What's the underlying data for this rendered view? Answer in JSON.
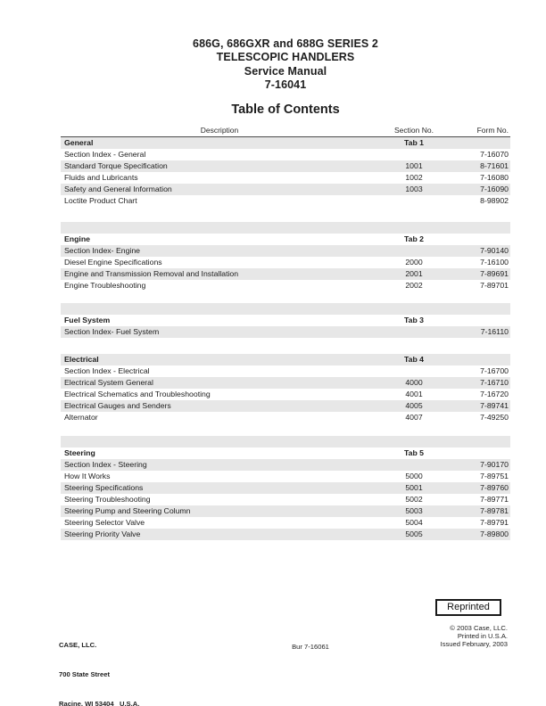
{
  "page": {
    "title_lines": [
      "686G, 686GXR and 688G SERIES 2",
      "TELESCOPIC HANDLERS",
      "Service Manual",
      "7-16041"
    ],
    "toc_heading": "Table of Contents"
  },
  "table": {
    "columns": {
      "description": "Description",
      "section_no": "Section No.",
      "form_no": "Form No."
    },
    "sections": [
      {
        "name": "General",
        "tab": "Tab 1",
        "header_shaded": true,
        "spacer_after": {
          "gap": 17,
          "gray_row": true
        },
        "rows": [
          {
            "description": "Section Index - General",
            "section_no": "",
            "form_no": "7-16070",
            "shaded": false
          },
          {
            "description": "Standard Torque Specification",
            "section_no": "1001",
            "form_no": "8-71601",
            "shaded": true
          },
          {
            "description": "Fluids and Lubricants",
            "section_no": "1002",
            "form_no": "7-16080",
            "shaded": false
          },
          {
            "description": "Safety and General Information",
            "section_no": "1003",
            "form_no": "7-16090",
            "shaded": true
          },
          {
            "description": "Loctite Product Chart",
            "section_no": "",
            "form_no": "8-98902",
            "shaded": false
          }
        ]
      },
      {
        "name": "Engine",
        "tab": "Tab 2",
        "header_shaded": false,
        "spacer_after": {
          "gap": 13,
          "gray_row": true
        },
        "rows": [
          {
            "description": "Section Index- Engine",
            "section_no": "",
            "form_no": "7-90140",
            "shaded": true
          },
          {
            "description": "Diesel Engine Specifications",
            "section_no": "2000",
            "form_no": "7-16100",
            "shaded": false
          },
          {
            "description": "Engine and Transmission Removal and Installation",
            "section_no": "2001",
            "form_no": "7-89691",
            "shaded": true
          },
          {
            "description": "Engine Troubleshooting",
            "section_no": "2002",
            "form_no": "7-89701",
            "shaded": false
          }
        ]
      },
      {
        "name": "Fuel System",
        "tab": "Tab 3",
        "header_shaded": false,
        "spacer_after": {
          "gap": 18,
          "gray_row": false
        },
        "rows": [
          {
            "description": "Section Index- Fuel System",
            "section_no": "",
            "form_no": "7-16110",
            "shaded": true
          }
        ]
      },
      {
        "name": "Electrical",
        "tab": "Tab 4",
        "header_shaded": true,
        "spacer_after": {
          "gap": 14,
          "gray_row": true
        },
        "rows": [
          {
            "description": "Section Index - Electrical",
            "section_no": "",
            "form_no": "7-16700",
            "shaded": false
          },
          {
            "description": "Electrical System General",
            "section_no": "4000",
            "form_no": "7-16710",
            "shaded": true
          },
          {
            "description": "Electrical Schematics and Troubleshooting",
            "section_no": "4001",
            "form_no": "7-16720",
            "shaded": false
          },
          {
            "description": "Electrical Gauges and Senders",
            "section_no": "4005",
            "form_no": "7-89741",
            "shaded": true
          },
          {
            "description": "Alternator",
            "section_no": "4007",
            "form_no": "7-49250",
            "shaded": false
          }
        ]
      },
      {
        "name": "Steering",
        "tab": "Tab 5",
        "header_shaded": false,
        "spacer_after": null,
        "rows": [
          {
            "description": "Section Index - Steering",
            "section_no": "",
            "form_no": "7-90170",
            "shaded": true
          },
          {
            "description": "How It Works",
            "section_no": "5000",
            "form_no": "7-89751",
            "shaded": false
          },
          {
            "description": "Steering Specifications",
            "section_no": "5001",
            "form_no": "7-89760",
            "shaded": true
          },
          {
            "description": "Steering Troubleshooting",
            "section_no": "5002",
            "form_no": "7-89771",
            "shaded": false
          },
          {
            "description": "Steering Pump and Steering Column",
            "section_no": "5003",
            "form_no": "7-89781",
            "shaded": true
          },
          {
            "description": "Steering Selector Valve",
            "section_no": "5004",
            "form_no": "7-89791",
            "shaded": false
          },
          {
            "description": "Steering Priority Valve",
            "section_no": "5005",
            "form_no": "7-89800",
            "shaded": true
          }
        ]
      }
    ]
  },
  "footer": {
    "reprinted_label": "Reprinted",
    "company_lines": [
      "CASE, LLC.",
      "700 State Street",
      "Racine, WI 53404   U.S.A."
    ],
    "bur_number": "Bur 7-16061",
    "colophon_lines": [
      "© 2003 Case, LLC.",
      "Printed in U.S.A.",
      "Issued February, 2003"
    ]
  },
  "colors": {
    "row_shade": "#e7e7e7",
    "text": "#1d1d1d",
    "rule": "#4a4a4a"
  }
}
